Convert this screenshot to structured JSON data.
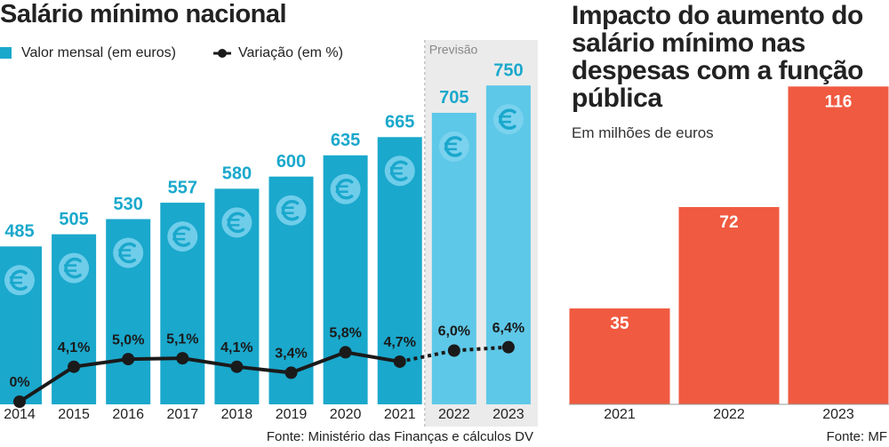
{
  "chart_data": [
    {
      "type": "bar_line",
      "title": "Salário mínimo nacional",
      "categories": [
        "2014",
        "2015",
        "2016",
        "2017",
        "2018",
        "2019",
        "2020",
        "2021",
        "2022",
        "2023"
      ],
      "series": [
        {
          "name": "Valor mensal (em euros)",
          "color": "#1aa8cc",
          "values": [
            485,
            505,
            530,
            557,
            580,
            600,
            635,
            665,
            705,
            750
          ]
        },
        {
          "name": "Variação (em %)",
          "color": "#1a1a1a",
          "axis": "y2",
          "values": [
            0,
            4.1,
            5.0,
            5.1,
            4.1,
            3.4,
            5.8,
            4.7,
            6.0,
            6.4
          ],
          "value_labels": [
            "0%",
            "4,1%",
            "5,0%",
            "5,1%",
            "4,1%",
            "3,4%",
            "5,8%",
            "4,7%",
            "6,0%",
            "6,4%"
          ]
        }
      ],
      "forecast": {
        "label": "Previsão",
        "from": "2022",
        "color": "#5ec8e8",
        "shade": "#ebebeb"
      },
      "ylim": [
        225,
        800
      ],
      "y2lim": [
        0,
        41
      ],
      "source": "Fonte: Ministério das Finanças e cálculos DV"
    },
    {
      "type": "bar",
      "title": "Impacto do aumento do salário mínimo nas despesas com a função pública",
      "subtitle": "Em milhões de euros",
      "categories": [
        "2021",
        "2022",
        "2023"
      ],
      "values": [
        35,
        72,
        116
      ],
      "color": "#f05a40",
      "ylim": [
        0,
        120
      ],
      "source": "Fonte: MF"
    }
  ]
}
